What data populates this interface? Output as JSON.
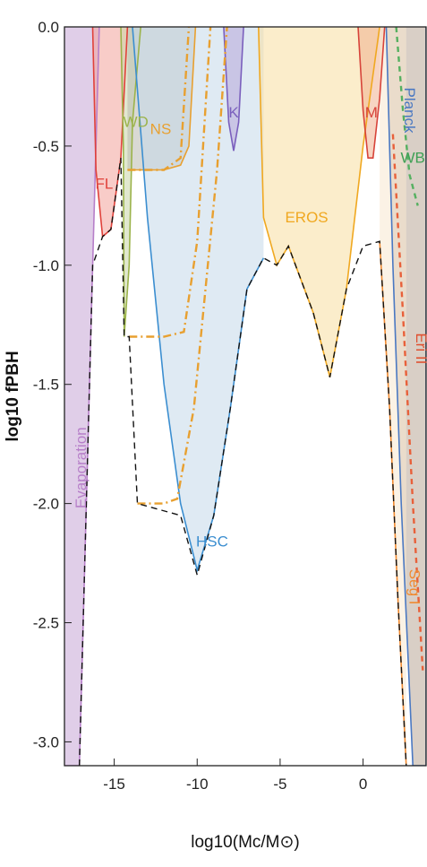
{
  "chart_data": {
    "type": "area",
    "title": "",
    "xlabel": "log10(Mc/M⊙)",
    "ylabel": "log10 fPBH",
    "xlim": [
      -18,
      3.8
    ],
    "ylim": [
      -3.1,
      0
    ],
    "x_ticks": [
      -15,
      -10,
      -5,
      0
    ],
    "x_tick_labels": [
      "-15",
      "-10",
      "-5",
      "0"
    ],
    "y_ticks": [
      0,
      -0.5,
      -1.0,
      -1.5,
      -2.0,
      -2.5,
      -3.0
    ],
    "y_tick_labels": [
      "0.0",
      "-0.5",
      "-1.0",
      "-1.5",
      "-2.0",
      "-2.5",
      "-3.0"
    ],
    "grid": false,
    "series": [
      {
        "name": "Evaporation",
        "color": "#c6a6d6",
        "label_color": "#b77fc9",
        "points": [
          [
            -18,
            -3.1
          ],
          [
            -17.1,
            -3.1
          ],
          [
            -16.3,
            -1.0
          ],
          [
            -15.9,
            0
          ]
        ]
      },
      {
        "name": "FL",
        "color": "#f2a39a",
        "label_color": "#e0413a",
        "points": [
          [
            -16.3,
            0
          ],
          [
            -16.1,
            -0.6
          ],
          [
            -15.7,
            -0.88
          ],
          [
            -15.2,
            -0.85
          ],
          [
            -14.6,
            -0.55
          ],
          [
            -14.2,
            0
          ]
        ]
      },
      {
        "name": "WD",
        "color": "#c9d6a8",
        "label_color": "#9bb34a",
        "points": [
          [
            -14.6,
            0
          ],
          [
            -14.45,
            -0.5
          ],
          [
            -14.4,
            -1.3
          ],
          [
            -14.1,
            -1.0
          ],
          [
            -13.9,
            -0.4
          ],
          [
            -13.4,
            0
          ]
        ]
      },
      {
        "name": "NS",
        "color": "#b9b9b0",
        "label_color": "#e8a030",
        "points": [
          [
            -14.2,
            -0.6
          ],
          [
            -12.0,
            -0.6
          ],
          [
            -11.0,
            -0.58
          ],
          [
            -10.5,
            -0.5
          ],
          [
            -10.1,
            0
          ]
        ]
      },
      {
        "name": "HSC",
        "color": "#c5d9ea",
        "label_color": "#3b8ed0",
        "points": [
          [
            -13.9,
            0
          ],
          [
            -13.0,
            -0.8
          ],
          [
            -12.0,
            -1.5
          ],
          [
            -11.0,
            -2.0
          ],
          [
            -10.0,
            -2.28
          ],
          [
            -9.0,
            -2.05
          ],
          [
            -8.0,
            -1.6
          ],
          [
            -7.0,
            -1.1
          ],
          [
            -6.0,
            -0.97
          ]
        ]
      },
      {
        "name": "K",
        "color": "#b7a6d8",
        "label_color": "#7a5fbd",
        "points": [
          [
            -8.4,
            0
          ],
          [
            -8.1,
            -0.4
          ],
          [
            -7.8,
            -0.52
          ],
          [
            -7.5,
            -0.4
          ],
          [
            -7.2,
            0
          ]
        ]
      },
      {
        "name": "EROS",
        "color": "#f7dea0",
        "label_color": "#f0a820",
        "points": [
          [
            -6.3,
            0
          ],
          [
            -6.0,
            -0.8
          ],
          [
            -5.2,
            -1.0
          ],
          [
            -4.5,
            -0.92
          ],
          [
            -3.0,
            -1.2
          ],
          [
            -2.0,
            -1.47
          ],
          [
            -1.0,
            -1.1
          ],
          [
            0.0,
            -0.5
          ],
          [
            1.0,
            0
          ]
        ]
      },
      {
        "name": "M",
        "color": "#f0b090",
        "label_color": "#d7433a",
        "points": [
          [
            -0.3,
            0
          ],
          [
            0.0,
            -0.35
          ],
          [
            0.3,
            -0.55
          ],
          [
            0.6,
            -0.55
          ],
          [
            1.0,
            -0.3
          ],
          [
            1.3,
            0
          ]
        ]
      },
      {
        "name": "Planck",
        "color": "#b9a898",
        "label_color": "#4a78c2",
        "points": [
          [
            1.4,
            0
          ],
          [
            1.8,
            -1.0
          ],
          [
            2.3,
            -2.0
          ],
          [
            3.0,
            -3.1
          ],
          [
            3.8,
            -3.1
          ],
          [
            3.8,
            0
          ]
        ]
      },
      {
        "name": "WB",
        "color": "#55b060",
        "label_color": "#3fa055",
        "points": [
          [
            2.0,
            0
          ],
          [
            2.4,
            -0.35
          ],
          [
            2.8,
            -0.62
          ],
          [
            3.3,
            -0.75
          ]
        ]
      },
      {
        "name": "Eri II",
        "color": "#e8603a",
        "label_color": "#e05030",
        "points": [
          [
            1.8,
            -0.45
          ],
          [
            2.4,
            -1.2
          ],
          [
            3.0,
            -2.0
          ],
          [
            3.6,
            -2.7
          ]
        ]
      },
      {
        "name": "Seg I",
        "color": "#f7e8d0",
        "label_color": "#f08a30",
        "points": [
          [
            1.0,
            -0.9
          ],
          [
            1.6,
            -1.6
          ],
          [
            2.1,
            -2.4
          ],
          [
            2.6,
            -3.1
          ]
        ]
      }
    ],
    "ns_curves": [
      {
        "points": [
          [
            -14.2,
            -0.6
          ],
          [
            -12.0,
            -0.6
          ],
          [
            -11.0,
            -0.55
          ],
          [
            -10.5,
            0
          ]
        ]
      },
      {
        "points": [
          [
            -14.1,
            -1.3
          ],
          [
            -12.0,
            -1.3
          ],
          [
            -10.8,
            -1.28
          ],
          [
            -10.0,
            -0.9
          ],
          [
            -9.2,
            0
          ]
        ]
      },
      {
        "points": [
          [
            -13.6,
            -2.0
          ],
          [
            -12.0,
            -2.0
          ],
          [
            -11.2,
            -1.98
          ],
          [
            -10.2,
            -1.6
          ],
          [
            -8.8,
            -0.6
          ],
          [
            -8.2,
            0
          ]
        ]
      }
    ]
  }
}
